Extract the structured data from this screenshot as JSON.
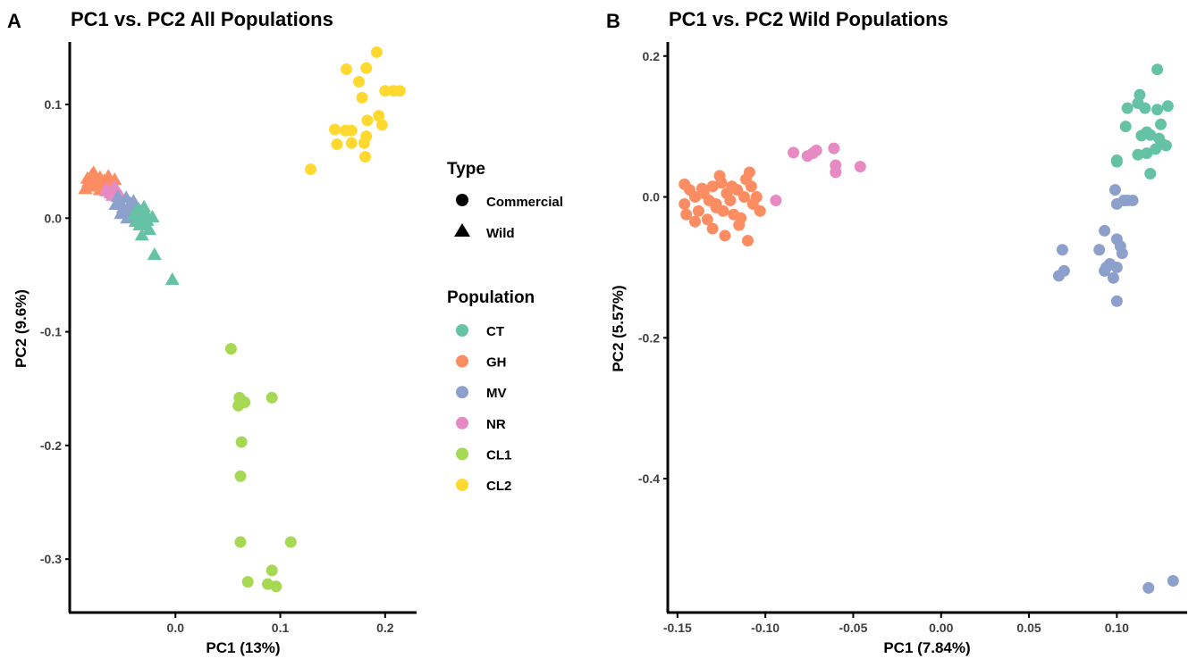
{
  "colors": {
    "CT": "#66c2a5",
    "GH": "#fc8d62",
    "MV": "#8da0cb",
    "NR": "#e78ac3",
    "CL1": "#a6d854",
    "CL2": "#ffd92f"
  },
  "legend": {
    "type_title": "Type",
    "type_items": [
      {
        "label": "Commercial",
        "shape": "circle"
      },
      {
        "label": "Wild",
        "shape": "triangle"
      }
    ],
    "population_title": "Population",
    "population_items": [
      {
        "label": "CT",
        "key": "CT"
      },
      {
        "label": "GH",
        "key": "GH"
      },
      {
        "label": "MV",
        "key": "MV"
      },
      {
        "label": "NR",
        "key": "NR"
      },
      {
        "label": "CL1",
        "key": "CL1"
      },
      {
        "label": "CL2",
        "key": "CL2"
      }
    ]
  },
  "chart_data": [
    {
      "panel": "A",
      "type": "scatter",
      "title": "PC1 vs. PC2 All Populations",
      "xlabel": "PC1 (13%)",
      "ylabel": "PC2 (9.6%)",
      "xlim": [
        -0.1,
        0.23
      ],
      "ylim": [
        -0.347,
        0.155
      ],
      "xticks": [
        0.0,
        0.1,
        0.2
      ],
      "xtick_labels": [
        "0.0",
        "0.1",
        "0.2"
      ],
      "yticks": [
        0.1,
        0.0,
        -0.1,
        -0.2,
        -0.3
      ],
      "ytick_labels": [
        "0.1",
        "0.0",
        "-0.1",
        "-0.2",
        "-0.3"
      ],
      "series": [
        {
          "name": "CL2",
          "shape": "circle",
          "points": [
            [
              0.192,
              0.146
            ],
            [
              0.163,
              0.131
            ],
            [
              0.182,
              0.132
            ],
            [
              0.175,
              0.12
            ],
            [
              0.2,
              0.112
            ],
            [
              0.208,
              0.112
            ],
            [
              0.214,
              0.112
            ],
            [
              0.178,
              0.106
            ],
            [
              0.194,
              0.09
            ],
            [
              0.183,
              0.086
            ],
            [
              0.197,
              0.082
            ],
            [
              0.152,
              0.078
            ],
            [
              0.162,
              0.077
            ],
            [
              0.168,
              0.077
            ],
            [
              0.182,
              0.072
            ],
            [
              0.154,
              0.065
            ],
            [
              0.168,
              0.066
            ],
            [
              0.18,
              0.066
            ],
            [
              0.181,
              0.054
            ],
            [
              0.129,
              0.043
            ]
          ]
        },
        {
          "name": "CL1",
          "shape": "circle",
          "points": [
            [
              0.053,
              -0.115
            ],
            [
              0.061,
              -0.158
            ],
            [
              0.092,
              -0.158
            ],
            [
              0.064,
              -0.161
            ],
            [
              0.06,
              -0.165
            ],
            [
              0.066,
              -0.162
            ],
            [
              0.063,
              -0.197
            ],
            [
              0.062,
              -0.227
            ],
            [
              0.062,
              -0.285
            ],
            [
              0.11,
              -0.285
            ],
            [
              0.092,
              -0.31
            ],
            [
              0.069,
              -0.32
            ],
            [
              0.088,
              -0.322
            ],
            [
              0.096,
              -0.324
            ]
          ]
        },
        {
          "name": "GH",
          "shape": "triangle",
          "points": [
            [
              -0.086,
              0.026
            ],
            [
              -0.083,
              0.032
            ],
            [
              -0.08,
              0.038
            ],
            [
              -0.078,
              0.028
            ],
            [
              -0.076,
              0.035
            ],
            [
              -0.074,
              0.03
            ],
            [
              -0.072,
              0.036
            ],
            [
              -0.07,
              0.027
            ],
            [
              -0.068,
              0.033
            ],
            [
              -0.066,
              0.029
            ],
            [
              -0.064,
              0.037
            ],
            [
              -0.062,
              0.031
            ],
            [
              -0.06,
              0.028
            ],
            [
              -0.078,
              0.04
            ],
            [
              -0.072,
              0.025
            ],
            [
              -0.066,
              0.024
            ],
            [
              -0.084,
              0.035
            ],
            [
              -0.058,
              0.034
            ]
          ]
        },
        {
          "name": "NR",
          "shape": "triangle",
          "points": [
            [
              -0.066,
              0.026
            ],
            [
              -0.062,
              0.022
            ],
            [
              -0.058,
              0.028
            ],
            [
              -0.055,
              0.023
            ],
            [
              -0.06,
              0.02
            ],
            [
              -0.052,
              0.019
            ],
            [
              -0.064,
              0.024
            ]
          ]
        },
        {
          "name": "MV",
          "shape": "triangle",
          "points": [
            [
              -0.057,
              0.012
            ],
            [
              -0.053,
              0.015
            ],
            [
              -0.05,
              0.009
            ],
            [
              -0.047,
              0.018
            ],
            [
              -0.045,
              0.006
            ],
            [
              -0.043,
              0.013
            ],
            [
              -0.041,
              0.004
            ],
            [
              -0.039,
              0.01
            ],
            [
              -0.037,
              0.003
            ],
            [
              -0.035,
              0.008
            ],
            [
              -0.052,
              0.004
            ],
            [
              -0.046,
              0.0
            ],
            [
              -0.055,
              0.019
            ],
            [
              -0.04,
              0.015
            ]
          ]
        },
        {
          "name": "CT",
          "shape": "triangle",
          "points": [
            [
              -0.04,
              0.003
            ],
            [
              -0.036,
              0.008
            ],
            [
              -0.033,
              0.0
            ],
            [
              -0.03,
              -0.005
            ],
            [
              -0.028,
              0.004
            ],
            [
              -0.025,
              -0.01
            ],
            [
              -0.032,
              -0.015
            ],
            [
              -0.022,
              0.001
            ],
            [
              -0.027,
              -0.002
            ],
            [
              -0.038,
              -0.003
            ],
            [
              -0.02,
              -0.032
            ],
            [
              -0.003,
              -0.054
            ],
            [
              -0.034,
              -0.006
            ],
            [
              -0.03,
              0.01
            ]
          ]
        }
      ]
    },
    {
      "panel": "B",
      "type": "scatter",
      "title": "PC1 vs. PC2 Wild Populations",
      "xlabel": "PC1 (7.84%)",
      "ylabel": "PC2 (5.57%)",
      "xlim": [
        -0.155,
        0.14
      ],
      "ylim": [
        -0.59,
        0.22
      ],
      "xticks": [
        -0.15,
        -0.1,
        -0.05,
        0.0,
        0.05,
        0.1
      ],
      "xtick_labels": [
        "-0.15",
        "-0.10",
        "-0.05",
        "0.00",
        "0.05",
        "0.10"
      ],
      "yticks": [
        0.2,
        0.0,
        -0.2,
        -0.4
      ],
      "ytick_labels": [
        "0.2",
        "0.0",
        "-0.2",
        "-0.4"
      ],
      "series": [
        {
          "name": "GH",
          "shape": "circle",
          "points": [
            [
              -0.146,
              0.018
            ],
            [
              -0.143,
              0.01
            ],
            [
              -0.146,
              -0.01
            ],
            [
              -0.145,
              -0.025
            ],
            [
              -0.14,
              0.0
            ],
            [
              -0.138,
              -0.02
            ],
            [
              -0.135,
              0.005
            ],
            [
              -0.133,
              -0.032
            ],
            [
              -0.13,
              0.015
            ],
            [
              -0.128,
              -0.01
            ],
            [
              -0.126,
              0.03
            ],
            [
              -0.125,
              0.02
            ],
            [
              -0.123,
              -0.055
            ],
            [
              -0.122,
              0.005
            ],
            [
              -0.12,
              -0.005
            ],
            [
              -0.118,
              -0.025
            ],
            [
              -0.116,
              0.01
            ],
            [
              -0.114,
              -0.03
            ],
            [
              -0.112,
              0.0
            ],
            [
              -0.111,
              0.025
            ],
            [
              -0.11,
              -0.062
            ],
            [
              -0.109,
              0.035
            ],
            [
              -0.107,
              -0.01
            ],
            [
              -0.105,
              0.0
            ],
            [
              -0.103,
              -0.02
            ],
            [
              -0.128,
              -0.015
            ],
            [
              -0.136,
              0.012
            ],
            [
              -0.115,
              -0.04
            ],
            [
              -0.132,
              -0.005
            ],
            [
              -0.108,
              0.015
            ],
            [
              -0.124,
              -0.02
            ],
            [
              -0.14,
              -0.035
            ],
            [
              -0.119,
              0.015
            ],
            [
              -0.13,
              -0.045
            ]
          ]
        },
        {
          "name": "NR",
          "shape": "circle",
          "points": [
            [
              -0.094,
              -0.005
            ],
            [
              -0.084,
              0.063
            ],
            [
              -0.076,
              0.058
            ],
            [
              -0.073,
              0.062
            ],
            [
              -0.071,
              0.066
            ],
            [
              -0.061,
              0.069
            ],
            [
              -0.06,
              0.045
            ],
            [
              -0.06,
              0.035
            ],
            [
              -0.046,
              0.043
            ]
          ]
        },
        {
          "name": "CT",
          "shape": "circle",
          "points": [
            [
              0.123,
              0.181
            ],
            [
              0.113,
              0.145
            ],
            [
              0.112,
              0.133
            ],
            [
              0.116,
              0.126
            ],
            [
              0.106,
              0.126
            ],
            [
              0.129,
              0.129
            ],
            [
              0.123,
              0.124
            ],
            [
              0.105,
              0.1
            ],
            [
              0.125,
              0.103
            ],
            [
              0.117,
              0.092
            ],
            [
              0.119,
              0.088
            ],
            [
              0.114,
              0.087
            ],
            [
              0.124,
              0.083
            ],
            [
              0.128,
              0.073
            ],
            [
              0.126,
              0.075
            ],
            [
              0.122,
              0.068
            ],
            [
              0.117,
              0.062
            ],
            [
              0.112,
              0.06
            ],
            [
              0.119,
              0.033
            ],
            [
              0.1,
              0.052
            ],
            [
              0.1,
              0.05
            ]
          ]
        },
        {
          "name": "MV",
          "shape": "circle",
          "points": [
            [
              0.099,
              0.01
            ],
            [
              0.1,
              -0.01
            ],
            [
              0.104,
              -0.005
            ],
            [
              0.106,
              -0.005
            ],
            [
              0.109,
              -0.005
            ],
            [
              0.093,
              -0.048
            ],
            [
              0.1,
              -0.06
            ],
            [
              0.102,
              -0.07
            ],
            [
              0.09,
              -0.075
            ],
            [
              0.069,
              -0.075
            ],
            [
              0.103,
              -0.08
            ],
            [
              0.096,
              -0.095
            ],
            [
              0.094,
              -0.1
            ],
            [
              0.1,
              -0.1
            ],
            [
              0.093,
              -0.105
            ],
            [
              0.07,
              -0.105
            ],
            [
              0.067,
              -0.112
            ],
            [
              0.098,
              -0.115
            ],
            [
              0.1,
              -0.148
            ],
            [
              0.118,
              -0.555
            ],
            [
              0.132,
              -0.545
            ]
          ]
        }
      ]
    }
  ]
}
